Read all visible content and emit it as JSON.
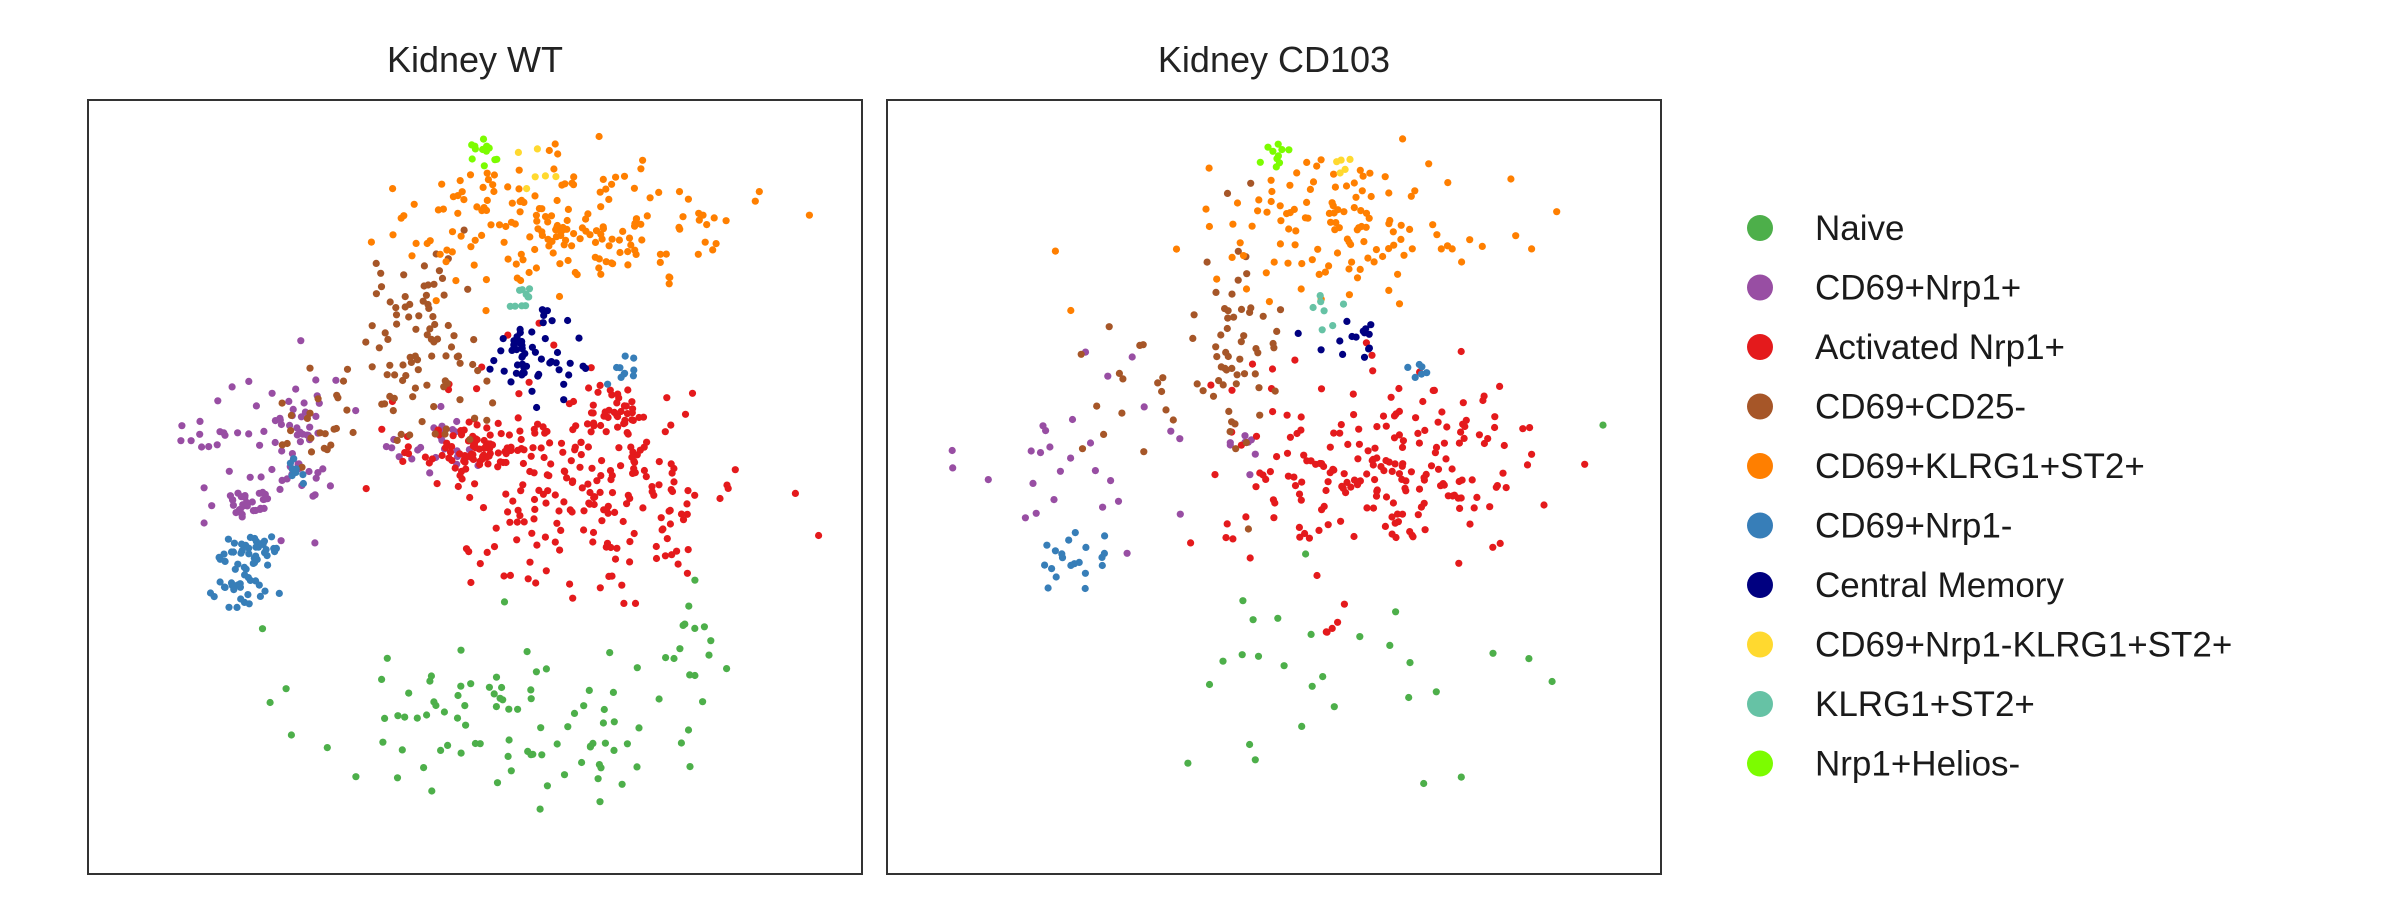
{
  "chart_data": [
    {
      "type": "scatter",
      "title": "Kidney WT",
      "xlim": [
        0,
        100
      ],
      "ylim": [
        0,
        100
      ],
      "clusters": [
        {
          "class": "Naive",
          "count": 95,
          "cx": 54,
          "cy": 20,
          "sx": 13,
          "sy": 6
        },
        {
          "class": "Naive",
          "count": 12,
          "cx": 77,
          "cy": 32,
          "sx": 3,
          "sy": 3
        },
        {
          "class": "CD69+Nrp1+",
          "count": 55,
          "cx": 27.5,
          "cy": 56,
          "sx": 2.2,
          "sy": 5
        },
        {
          "class": "CD69+Nrp1+",
          "count": 30,
          "cx": 20.5,
          "cy": 48,
          "sx": 1.6,
          "sy": 1
        },
        {
          "class": "CD69+Nrp1+",
          "count": 25,
          "cx": 18,
          "cy": 56,
          "sx": 4,
          "sy": 5
        },
        {
          "class": "CD69+Nrp1+",
          "count": 25,
          "cx": 46,
          "cy": 55,
          "sx": 3,
          "sy": 2
        },
        {
          "class": "Activated Nrp1+",
          "count": 90,
          "cx": 51,
          "cy": 55,
          "sx": 4,
          "sy": 2
        },
        {
          "class": "Activated Nrp1+",
          "count": 220,
          "cx": 65,
          "cy": 50,
          "sx": 10,
          "sy": 7
        },
        {
          "class": "Activated Nrp1+",
          "count": 28,
          "cx": 69,
          "cy": 60,
          "sx": 2,
          "sy": 1.5
        },
        {
          "class": "CD69+CD25-",
          "count": 90,
          "cx": 43,
          "cy": 68,
          "sx": 4,
          "sy": 6
        },
        {
          "class": "CD69+CD25-",
          "count": 25,
          "cx": 30,
          "cy": 59,
          "sx": 3,
          "sy": 4
        },
        {
          "class": "CD69+KLRG1+ST2+",
          "count": 190,
          "cx": 62,
          "cy": 84,
          "sx": 11,
          "sy": 4
        },
        {
          "class": "CD69+Nrp1-",
          "count": 35,
          "cx": 21.5,
          "cy": 42,
          "sx": 2,
          "sy": 1
        },
        {
          "class": "CD69+Nrp1-",
          "count": 30,
          "cx": 19.5,
          "cy": 36.5,
          "sx": 2,
          "sy": 1.8
        },
        {
          "class": "CD69+Nrp1-",
          "count": 10,
          "cx": 69,
          "cy": 65,
          "sx": 1,
          "sy": 1.5
        },
        {
          "class": "CD69+Nrp1-",
          "count": 8,
          "cx": 27,
          "cy": 52,
          "sx": 1,
          "sy": 1
        },
        {
          "class": "Central Memory",
          "count": 55,
          "cx": 57,
          "cy": 67,
          "sx": 2.5,
          "sy": 2.5
        },
        {
          "class": "CD69+Nrp1-KLRG1+ST2+",
          "count": 6,
          "cx": 58,
          "cy": 91,
          "sx": 2,
          "sy": 2
        },
        {
          "class": "KLRG1+ST2+",
          "count": 10,
          "cx": 56,
          "cy": 74,
          "sx": 1,
          "sy": 1.5
        },
        {
          "class": "Nrp1+Helios-",
          "count": 14,
          "cx": 51,
          "cy": 93,
          "sx": 1.5,
          "sy": 1
        }
      ]
    },
    {
      "type": "scatter",
      "title": "Kidney CD103",
      "xlim": [
        0,
        100
      ],
      "ylim": [
        0,
        100
      ],
      "clusters": [
        {
          "class": "Naive",
          "count": 28,
          "cx": 63,
          "cy": 28,
          "sx": 11,
          "sy": 6
        },
        {
          "class": "CD69+Nrp1+",
          "count": 28,
          "cx": 24,
          "cy": 54,
          "sx": 7,
          "sy": 6
        },
        {
          "class": "CD69+Nrp1+",
          "count": 8,
          "cx": 47,
          "cy": 55,
          "sx": 1.5,
          "sy": 1.5
        },
        {
          "class": "Activated Nrp1+",
          "count": 210,
          "cx": 64,
          "cy": 53,
          "sx": 10,
          "sy": 6
        },
        {
          "class": "Activated Nrp1+",
          "count": 4,
          "cx": 58,
          "cy": 31,
          "sx": 1,
          "sy": 1
        },
        {
          "class": "CD69+CD25-",
          "count": 55,
          "cx": 45,
          "cy": 66,
          "sx": 3,
          "sy": 7
        },
        {
          "class": "CD69+CD25-",
          "count": 18,
          "cx": 33,
          "cy": 62,
          "sx": 4,
          "sy": 5
        },
        {
          "class": "CD69+KLRG1+ST2+",
          "count": 120,
          "cx": 59,
          "cy": 84,
          "sx": 9,
          "sy": 4
        },
        {
          "class": "CD69+KLRG1+ST2+",
          "count": 5,
          "cx": 73,
          "cy": 81,
          "sx": 1,
          "sy": 1
        },
        {
          "class": "CD69+Nrp1-",
          "count": 20,
          "cx": 22,
          "cy": 40,
          "sx": 3.5,
          "sy": 3
        },
        {
          "class": "CD69+Nrp1-",
          "count": 6,
          "cx": 69,
          "cy": 65,
          "sx": 0.8,
          "sy": 0.8
        },
        {
          "class": "Central Memory",
          "count": 15,
          "cx": 61,
          "cy": 69,
          "sx": 3,
          "sy": 1.3
        },
        {
          "class": "CD69+Nrp1-KLRG1+ST2+",
          "count": 5,
          "cx": 58,
          "cy": 91,
          "sx": 2,
          "sy": 1.5
        },
        {
          "class": "KLRG1+ST2+",
          "count": 7,
          "cx": 56.5,
          "cy": 73,
          "sx": 1,
          "sy": 1.5
        },
        {
          "class": "Nrp1+Helios-",
          "count": 10,
          "cx": 50.5,
          "cy": 93,
          "sx": 1,
          "sy": 0.8
        }
      ],
      "points": [
        {
          "class": "Naive",
          "x": 92.5,
          "y": 58
        }
      ]
    }
  ],
  "legend": {
    "placement": "right",
    "items": [
      {
        "label": "Naive",
        "color": "#4daf4a"
      },
      {
        "label": "CD69+Nrp1+",
        "color": "#984ea3"
      },
      {
        "label": "Activated Nrp1+",
        "color": "#e41a1c"
      },
      {
        "label": "CD69+CD25-",
        "color": "#a65628"
      },
      {
        "label": "CD69+KLRG1+ST2+",
        "color": "#ff7f00"
      },
      {
        "label": "CD69+Nrp1-",
        "color": "#377eb8"
      },
      {
        "label": "Central Memory",
        "color": "#000080"
      },
      {
        "label": "CD69+Nrp1-KLRG1+ST2+",
        "color": "#ffd92f"
      },
      {
        "label": "KLRG1+ST2+",
        "color": "#66c2a5"
      },
      {
        "label": "Nrp1+Helios-",
        "color": "#7cfc00"
      }
    ]
  }
}
